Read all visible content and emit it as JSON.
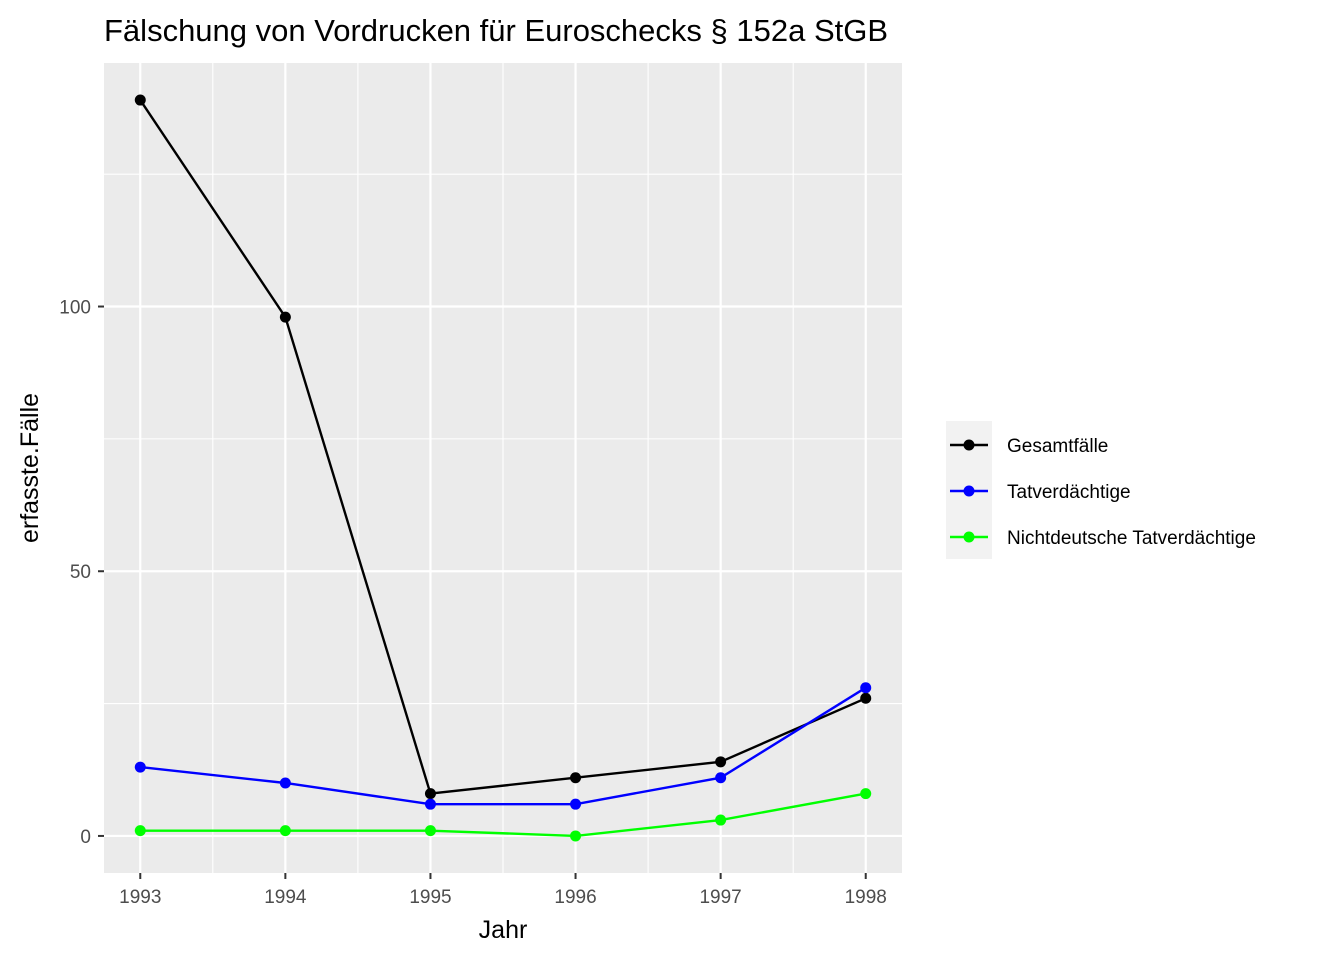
{
  "chart_data": {
    "type": "line",
    "title": "Fälschung von Vordrucken für Euroschecks § 152a StGB",
    "xlabel": "Jahr",
    "ylabel": "erfasste.Fälle",
    "x": [
      1993,
      1994,
      1995,
      1996,
      1997,
      1998
    ],
    "x_tick_labels": [
      "1993",
      "1994",
      "1995",
      "1996",
      "1997",
      "1998"
    ],
    "y_ticks": [
      0,
      50,
      100
    ],
    "y_tick_labels": [
      "0",
      "50",
      "100"
    ],
    "xlim": [
      1992.75,
      1998.25
    ],
    "ylim": [
      -7,
      146
    ],
    "grid": true,
    "legend_position": "right",
    "series": [
      {
        "name": "Gesamtfälle",
        "color": "#000000",
        "values": [
          139,
          98,
          8,
          11,
          14,
          26
        ]
      },
      {
        "name": "Tatverdächtige",
        "color": "#0000ff",
        "values": [
          13,
          10,
          6,
          6,
          11,
          28
        ]
      },
      {
        "name": "Nichtdeutsche Tatverdächtige",
        "color": "#00ff00",
        "values": [
          1,
          1,
          1,
          0,
          3,
          8
        ]
      }
    ],
    "panel_background": "#ebebeb",
    "grid_color": "#ffffff"
  }
}
